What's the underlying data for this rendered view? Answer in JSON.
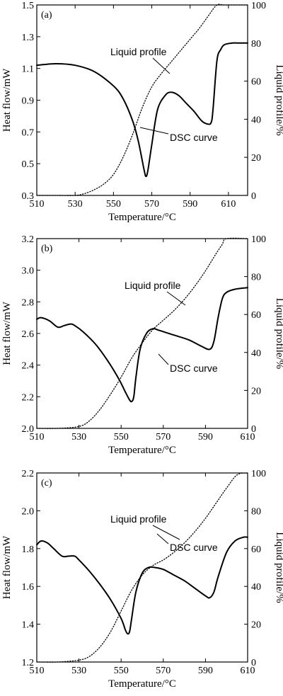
{
  "chart_data": [
    {
      "type": "line",
      "panel_label": "(a)",
      "xlabel": "Temperature/°C",
      "ylabel_left": "Heat flow/mW",
      "ylabel_right": "Liquid profile/%",
      "xlim": [
        510,
        620
      ],
      "ylim_left": [
        0.3,
        1.5
      ],
      "ylim_right": [
        0,
        100
      ],
      "xticks": [
        "510",
        "530",
        "550",
        "570",
        "590",
        "610"
      ],
      "yticks_left": [
        "0.3",
        "0.5",
        "0.7",
        "0.9",
        "1.1",
        "1.3",
        "1.5"
      ],
      "yticks_right": [
        "0",
        "20",
        "40",
        "60",
        "80",
        "100"
      ],
      "annotations": [
        "Liquid profile",
        "DSC curve"
      ],
      "series": [
        {
          "name": "DSC curve",
          "axis": "left",
          "style": "solid",
          "x": [
            510,
            520,
            530,
            540,
            550,
            555,
            560,
            563,
            566,
            567,
            568,
            570,
            573,
            577,
            580,
            584,
            588,
            592,
            596,
            599,
            601,
            602,
            604,
            606,
            608,
            612,
            616,
            620
          ],
          "y": [
            1.12,
            1.13,
            1.12,
            1.08,
            0.99,
            0.91,
            0.77,
            0.64,
            0.46,
            0.42,
            0.46,
            0.62,
            0.84,
            0.93,
            0.95,
            0.93,
            0.88,
            0.83,
            0.77,
            0.75,
            0.76,
            0.85,
            1.15,
            1.22,
            1.25,
            1.26,
            1.26,
            1.26
          ]
        },
        {
          "name": "Liquid profile",
          "axis": "right",
          "style": "dotted",
          "x": [
            510,
            520,
            530,
            535,
            540,
            545,
            550,
            555,
            560,
            565,
            570,
            575,
            580,
            585,
            590,
            595,
            600,
            604,
            608,
            620
          ],
          "y": [
            0,
            0,
            0,
            1,
            3,
            6,
            11,
            20,
            32,
            46,
            57,
            64,
            70,
            76,
            82,
            88,
            95,
            100,
            100,
            100
          ]
        }
      ]
    },
    {
      "type": "line",
      "panel_label": "(b)",
      "xlabel": "Temperature/°C",
      "ylabel_left": "Heat flow/mW",
      "ylabel_right": "Liquid profile/%",
      "xlim": [
        510,
        610
      ],
      "ylim_left": [
        2.0,
        3.2
      ],
      "ylim_right": [
        0,
        100
      ],
      "xticks": [
        "510",
        "530",
        "550",
        "570",
        "590",
        "610"
      ],
      "yticks_left": [
        "2.0",
        "2.2",
        "2.4",
        "2.6",
        "2.8",
        "3.0",
        "3.2"
      ],
      "yticks_right": [
        "0",
        "20",
        "40",
        "60",
        "80",
        "100"
      ],
      "annotations": [
        "Liquid profile",
        "DSC curve"
      ],
      "series": [
        {
          "name": "DSC curve",
          "axis": "left",
          "style": "solid",
          "x": [
            510,
            512,
            516,
            520,
            523,
            526,
            528,
            532,
            538,
            544,
            549,
            552,
            554,
            555,
            556,
            557,
            559,
            562,
            565,
            568,
            575,
            582,
            588,
            592,
            594,
            596,
            598,
            600,
            604,
            610
          ],
          "y": [
            2.69,
            2.7,
            2.68,
            2.64,
            2.65,
            2.66,
            2.65,
            2.61,
            2.53,
            2.42,
            2.31,
            2.23,
            2.18,
            2.17,
            2.2,
            2.32,
            2.5,
            2.6,
            2.63,
            2.62,
            2.59,
            2.56,
            2.52,
            2.5,
            2.55,
            2.7,
            2.82,
            2.86,
            2.88,
            2.89
          ]
        },
        {
          "name": "Liquid profile",
          "axis": "right",
          "style": "dotted",
          "x": [
            510,
            520,
            530,
            535,
            540,
            545,
            550,
            555,
            560,
            565,
            570,
            575,
            580,
            585,
            590,
            595,
            598,
            600,
            610
          ],
          "y": [
            0,
            0,
            1,
            4,
            10,
            18,
            27,
            37,
            45,
            52,
            57,
            62,
            68,
            75,
            83,
            92,
            97,
            100,
            100
          ]
        }
      ]
    },
    {
      "type": "line",
      "panel_label": "(c)",
      "xlabel": "Temperature/°C",
      "ylabel_left": "Heat flow/mW",
      "ylabel_right": "Liquid profile/%",
      "xlim": [
        510,
        610
      ],
      "ylim_left": [
        1.2,
        2.2
      ],
      "ylim_right": [
        0,
        100
      ],
      "xticks": [
        "510",
        "530",
        "550",
        "570",
        "590",
        "610"
      ],
      "yticks_left": [
        "1.2",
        "1.4",
        "1.6",
        "1.8",
        "2.0",
        "2.2"
      ],
      "yticks_right": [
        "0",
        "20",
        "40",
        "60",
        "80",
        "100"
      ],
      "annotations": [
        "Liquid profile",
        "DSC curve"
      ],
      "series": [
        {
          "name": "DSC curve",
          "axis": "left",
          "style": "solid",
          "x": [
            510,
            512,
            515,
            518,
            522,
            525,
            528,
            530,
            535,
            540,
            545,
            550,
            552,
            553,
            554,
            555,
            557,
            560,
            563,
            566,
            570,
            575,
            580,
            585,
            590,
            592,
            594,
            596,
            600,
            604,
            608,
            610
          ],
          "y": [
            1.82,
            1.84,
            1.83,
            1.8,
            1.76,
            1.76,
            1.76,
            1.74,
            1.68,
            1.61,
            1.53,
            1.43,
            1.37,
            1.35,
            1.36,
            1.43,
            1.57,
            1.67,
            1.7,
            1.7,
            1.69,
            1.66,
            1.63,
            1.59,
            1.55,
            1.54,
            1.57,
            1.65,
            1.78,
            1.84,
            1.86,
            1.86
          ]
        },
        {
          "name": "Liquid profile",
          "axis": "right",
          "style": "dotted",
          "x": [
            510,
            520,
            530,
            535,
            540,
            545,
            550,
            555,
            560,
            565,
            570,
            575,
            580,
            585,
            590,
            595,
            600,
            605,
            610
          ],
          "y": [
            0,
            0,
            1,
            3,
            8,
            16,
            27,
            38,
            46,
            51,
            54,
            58,
            63,
            69,
            76,
            84,
            92,
            99,
            100
          ]
        }
      ]
    }
  ]
}
